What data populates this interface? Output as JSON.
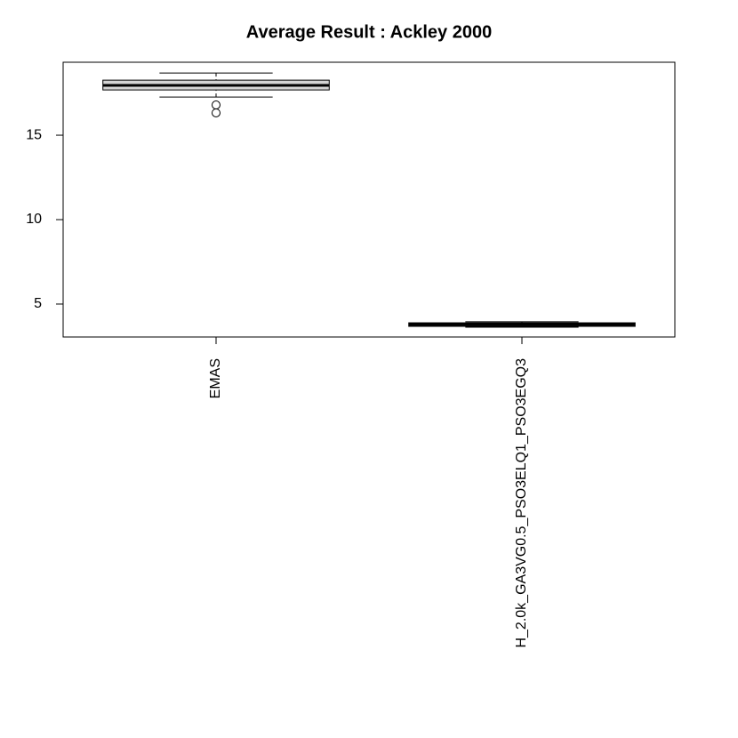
{
  "chart_data": {
    "type": "boxplot",
    "title": "Average Result : Ackley 2000",
    "categories": [
      "EMAS",
      "H_2.0k_GA3VG0.5_PSO3ELQ1_PSO3EGQ3"
    ],
    "boxes": [
      {
        "whisker_low": 17.26,
        "q1": 17.68,
        "median": 17.95,
        "q3": 18.26,
        "whisker_high": 18.68,
        "outliers": [
          16.79,
          16.32
        ]
      },
      {
        "whisker_low": 3.63,
        "q1": 3.68,
        "median": 3.79,
        "q3": 3.89,
        "whisker_high": 3.95,
        "outliers": []
      }
    ],
    "color": "#d3d3d3",
    "ylim": [
      3.05,
      19.32
    ],
    "yticks": [
      5,
      10,
      15
    ]
  }
}
